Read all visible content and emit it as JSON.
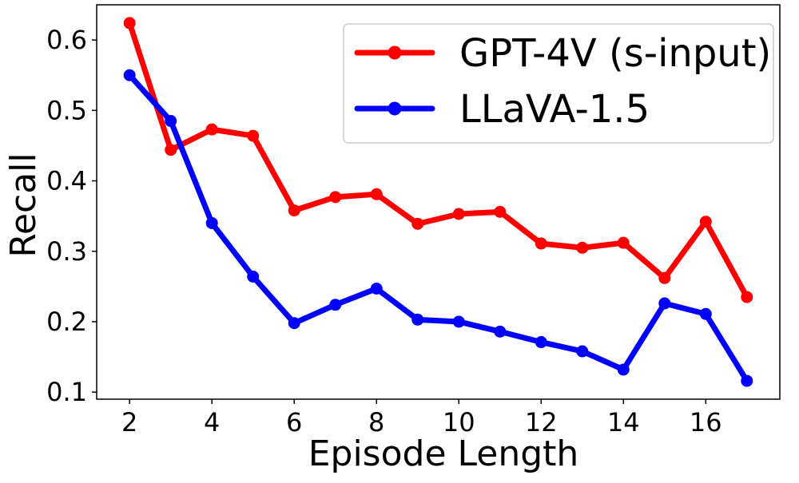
{
  "chart_data": {
    "type": "line",
    "title": "",
    "xlabel": "Episode Length",
    "ylabel": "Recall",
    "xlim": [
      1.2,
      17.8
    ],
    "ylim": [
      0.09,
      0.65
    ],
    "xticks": [
      2,
      4,
      6,
      8,
      10,
      12,
      14,
      16
    ],
    "xtick_labels": [
      "2",
      "4",
      "6",
      "8",
      "10",
      "12",
      "14",
      "16"
    ],
    "yticks": [
      0.1,
      0.2,
      0.3,
      0.4,
      0.5,
      0.6
    ],
    "ytick_labels": [
      "0.1",
      "0.2",
      "0.3",
      "0.4",
      "0.5",
      "0.6"
    ],
    "grid": false,
    "legend_position": "top-right",
    "x": [
      2,
      3,
      4,
      5,
      6,
      7,
      8,
      9,
      10,
      11,
      12,
      13,
      14,
      15,
      16,
      17
    ],
    "series": [
      {
        "name": "GPT-4V (s-input)",
        "color": "#ff0000",
        "values": [
          0.624,
          0.444,
          0.473,
          0.464,
          0.358,
          0.377,
          0.381,
          0.339,
          0.353,
          0.356,
          0.311,
          0.305,
          0.312,
          0.262,
          0.342,
          0.235
        ]
      },
      {
        "name": "LLaVA-1.5",
        "color": "#0000ff",
        "values": [
          0.55,
          0.485,
          0.34,
          0.264,
          0.198,
          0.224,
          0.247,
          0.203,
          0.2,
          0.186,
          0.171,
          0.158,
          0.132,
          0.226,
          0.211,
          0.116
        ]
      }
    ]
  }
}
